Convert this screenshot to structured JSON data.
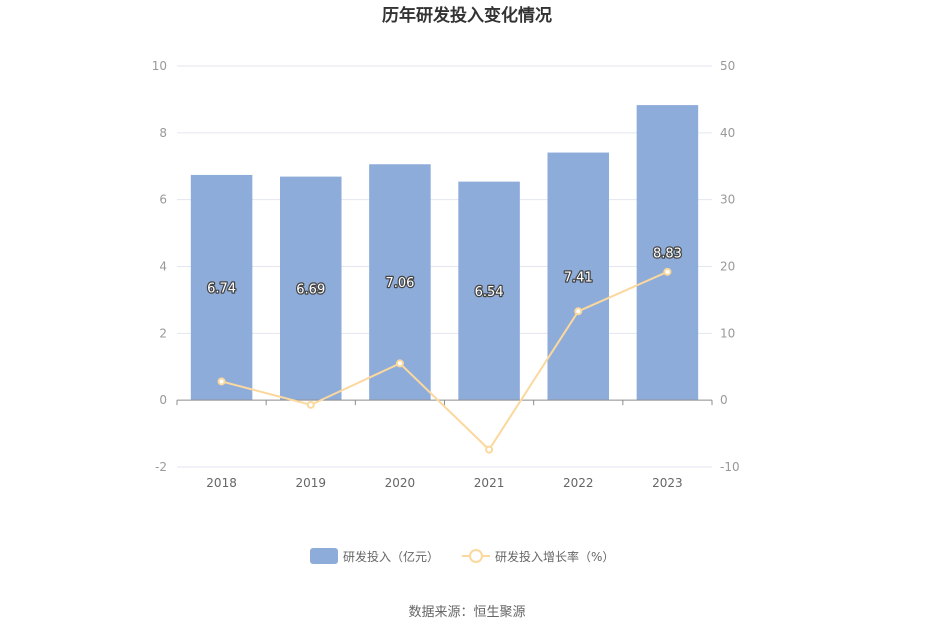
{
  "chart_data": {
    "type": "bar",
    "title": "历年研发投入变化情况",
    "categories": [
      "2018",
      "2019",
      "2020",
      "2021",
      "2022",
      "2023"
    ],
    "series": [
      {
        "name": "研发投入（亿元）",
        "type": "bar",
        "axis": "left",
        "color": "#8eacd9",
        "values": [
          6.74,
          6.69,
          7.06,
          6.54,
          7.41,
          8.83
        ]
      },
      {
        "name": "研发投入增长率（%）",
        "type": "line",
        "axis": "right",
        "color": "#fbd89d",
        "values": [
          2.8,
          -0.7,
          5.5,
          -7.4,
          13.3,
          19.2
        ]
      }
    ],
    "y_left": {
      "ticks": [
        -2,
        0,
        2,
        4,
        6,
        8,
        10
      ],
      "min": -2,
      "max": 10
    },
    "y_right": {
      "ticks": [
        -10,
        0,
        10,
        20,
        30,
        40,
        50
      ],
      "min": -10,
      "max": 50
    },
    "grid": true,
    "legend_position": "bottom"
  },
  "source_text": "数据来源：恒生聚源"
}
